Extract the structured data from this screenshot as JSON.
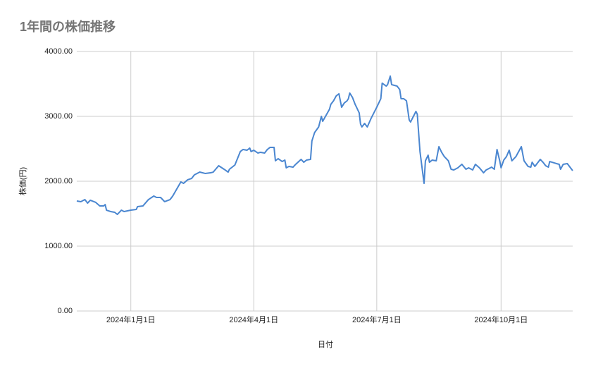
{
  "chart_data": {
    "type": "line",
    "title": "1年間の株価推移",
    "x_label": "日付",
    "y_label": "株価(円)",
    "color": "#4a86d0",
    "grid": true,
    "x": [
      "2023-11-22",
      "2023-11-25",
      "2023-11-28",
      "2023-11-30",
      "2023-12-02",
      "2023-12-06",
      "2023-12-09",
      "2023-12-12",
      "2023-12-13",
      "2023-12-14",
      "2023-12-17",
      "2023-12-20",
      "2023-12-22",
      "2023-12-25",
      "2023-12-27",
      "2024-01-01",
      "2024-01-05",
      "2024-01-06",
      "2024-01-10",
      "2024-01-14",
      "2024-01-18",
      "2024-01-20",
      "2024-01-23",
      "2024-01-26",
      "2024-01-30",
      "2024-02-01",
      "2024-02-04",
      "2024-02-07",
      "2024-02-09",
      "2024-02-12",
      "2024-02-15",
      "2024-02-17",
      "2024-02-21",
      "2024-02-25",
      "2024-02-29",
      "2024-03-02",
      "2024-03-06",
      "2024-03-10",
      "2024-03-13",
      "2024-03-14",
      "2024-03-18",
      "2024-03-22",
      "2024-03-24",
      "2024-03-27",
      "2024-03-29",
      "2024-03-30",
      "2024-04-01",
      "2024-04-04",
      "2024-04-06",
      "2024-04-09",
      "2024-04-11",
      "2024-04-13",
      "2024-04-16",
      "2024-04-17",
      "2024-04-19",
      "2024-04-22",
      "2024-04-24",
      "2024-04-25",
      "2024-04-27",
      "2024-04-30",
      "2024-05-02",
      "2024-05-06",
      "2024-05-08",
      "2024-05-10",
      "2024-05-13",
      "2024-05-14",
      "2024-05-16",
      "2024-05-19",
      "2024-05-21",
      "2024-05-22",
      "2024-05-27",
      "2024-05-28",
      "2024-05-30",
      "2024-06-01",
      "2024-06-03",
      "2024-06-05",
      "2024-06-07",
      "2024-06-09",
      "2024-06-10",
      "2024-06-11",
      "2024-06-13",
      "2024-06-15",
      "2024-06-18",
      "2024-06-19",
      "2024-06-20",
      "2024-06-22",
      "2024-06-24",
      "2024-06-27",
      "2024-07-01",
      "2024-07-04",
      "2024-07-05",
      "2024-07-08",
      "2024-07-09",
      "2024-07-11",
      "2024-07-12",
      "2024-07-16",
      "2024-07-18",
      "2024-07-19",
      "2024-07-21",
      "2024-07-23",
      "2024-07-25",
      "2024-07-26",
      "2024-07-30",
      "2024-07-31",
      "2024-08-02",
      "2024-08-04",
      "2024-08-05",
      "2024-08-06",
      "2024-08-08",
      "2024-08-09",
      "2024-08-11",
      "2024-08-14",
      "2024-08-16",
      "2024-08-18",
      "2024-08-20",
      "2024-08-23",
      "2024-08-25",
      "2024-08-27",
      "2024-08-30",
      "2024-09-02",
      "2024-09-05",
      "2024-09-07",
      "2024-09-10",
      "2024-09-12",
      "2024-09-15",
      "2024-09-18",
      "2024-09-20",
      "2024-09-24",
      "2024-09-26",
      "2024-09-28",
      "2024-09-30",
      "2024-10-01",
      "2024-10-03",
      "2024-10-05",
      "2024-10-07",
      "2024-10-09",
      "2024-10-12",
      "2024-10-16",
      "2024-10-18",
      "2024-10-21",
      "2024-10-23",
      "2024-10-24",
      "2024-10-26",
      "2024-10-30",
      "2024-11-01",
      "2024-11-03",
      "2024-11-05",
      "2024-11-06",
      "2024-11-11",
      "2024-11-13",
      "2024-11-14",
      "2024-11-16",
      "2024-11-19",
      "2024-11-23"
    ],
    "values": [
      1696,
      1685,
      1717,
      1663,
      1707,
      1674,
      1620,
      1620,
      1641,
      1554,
      1533,
      1522,
      1489,
      1554,
      1533,
      1554,
      1565,
      1609,
      1620,
      1717,
      1772,
      1750,
      1750,
      1685,
      1717,
      1772,
      1880,
      1989,
      1967,
      2022,
      2043,
      2098,
      2141,
      2120,
      2130,
      2141,
      2239,
      2185,
      2141,
      2185,
      2250,
      2457,
      2489,
      2478,
      2511,
      2457,
      2478,
      2435,
      2446,
      2435,
      2489,
      2522,
      2522,
      2315,
      2348,
      2304,
      2326,
      2207,
      2228,
      2217,
      2261,
      2337,
      2293,
      2326,
      2337,
      2620,
      2750,
      2837,
      3000,
      2924,
      3109,
      3185,
      3239,
      3315,
      3348,
      3141,
      3207,
      3239,
      3272,
      3359,
      3293,
      3185,
      3054,
      2880,
      2837,
      2891,
      2837,
      2978,
      3141,
      3272,
      3511,
      3467,
      3489,
      3620,
      3489,
      3467,
      3413,
      3272,
      3272,
      3239,
      2946,
      2913,
      3076,
      3033,
      2457,
      2130,
      1967,
      2315,
      2402,
      2293,
      2326,
      2315,
      2533,
      2446,
      2380,
      2315,
      2185,
      2174,
      2207,
      2261,
      2185,
      2207,
      2174,
      2261,
      2207,
      2130,
      2174,
      2217,
      2185,
      2489,
      2315,
      2207,
      2326,
      2380,
      2478,
      2315,
      2380,
      2533,
      2315,
      2228,
      2217,
      2293,
      2228,
      2337,
      2293,
      2239,
      2217,
      2304,
      2272,
      2261,
      2185,
      2261,
      2272,
      2163
    ],
    "xlim": [
      "2023-11-22",
      "2024-11-23"
    ],
    "xticks": [
      {
        "value": "2024-01-01",
        "label": "2024年1月1日"
      },
      {
        "value": "2024-04-01",
        "label": "2024年4月1日"
      },
      {
        "value": "2024-07-01",
        "label": "2024年7月1日"
      },
      {
        "value": "2024-10-01",
        "label": "2024年10月1日"
      }
    ],
    "ylim": [
      0,
      4000
    ],
    "yticks": [
      {
        "value": 0,
        "label": "0.00"
      },
      {
        "value": 1000,
        "label": "1000.00"
      },
      {
        "value": 2000,
        "label": "2000.00"
      },
      {
        "value": 3000,
        "label": "3000.00"
      },
      {
        "value": 4000,
        "label": "4000.00"
      }
    ]
  }
}
